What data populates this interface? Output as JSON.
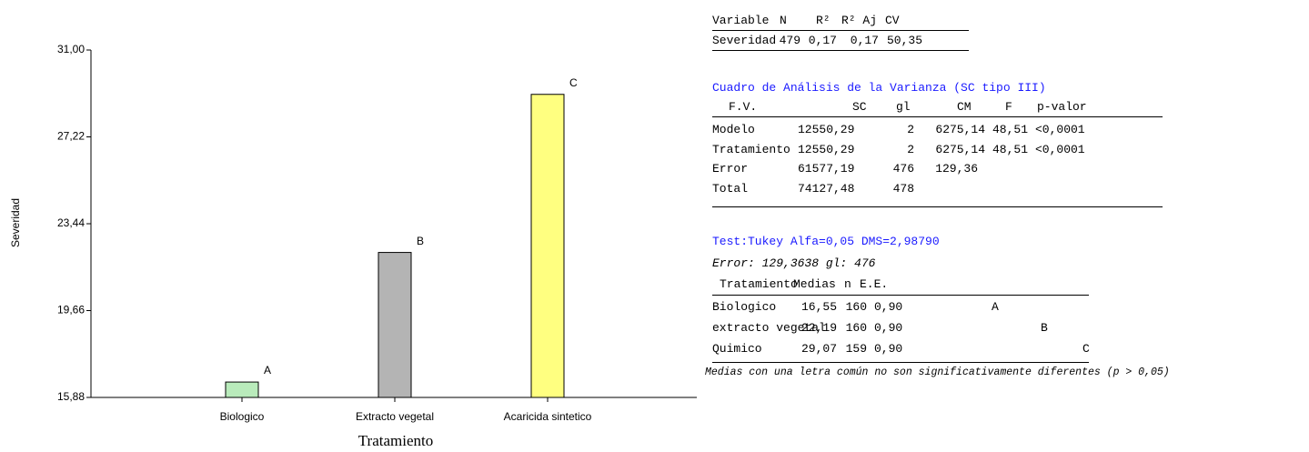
{
  "chart_data": {
    "type": "bar",
    "ylabel": "Severidad",
    "xlabel": "Tratamiento",
    "categories": [
      "Biologico",
      "Extracto vegetal",
      "Acaricida sintetico"
    ],
    "values": [
      16.55,
      22.19,
      29.07
    ],
    "annotations": [
      "A",
      "B",
      "C"
    ],
    "colors": [
      "#b9ebbb",
      "#b4b4b4",
      "#ffff80"
    ],
    "ylim": [
      15.88,
      31.0
    ],
    "yticks": [
      {
        "value": 15.88,
        "label": "15,88"
      },
      {
        "value": 19.66,
        "label": "19,66"
      },
      {
        "value": 23.44,
        "label": "23,44"
      },
      {
        "value": 27.22,
        "label": "27,22"
      },
      {
        "value": 31.0,
        "label": "31,00"
      }
    ]
  },
  "summary": {
    "header": [
      "Variable",
      "N",
      "R²",
      "R² Aj",
      "CV"
    ],
    "rows": [
      [
        "Severidad",
        "479",
        "0,17",
        "0,17",
        "50,35"
      ]
    ]
  },
  "anova": {
    "title": "Cuadro de Análisis de la Varianza (SC tipo III)",
    "header": [
      "F.V.",
      "SC",
      "gl",
      "CM",
      "F",
      "p-valor"
    ],
    "rows": [
      [
        "Modelo",
        "12550,29",
        "2",
        "6275,14",
        "48,51",
        "<0,0001"
      ],
      [
        "Tratamiento",
        "12550,29",
        "2",
        "6275,14",
        "48,51",
        "<0,0001"
      ],
      [
        "Error",
        "61577,19",
        "476",
        "129,36"
      ],
      [
        "Total",
        "74127,48",
        "478"
      ]
    ]
  },
  "tukey": {
    "title": "Test:Tukey Alfa=0,05 DMS=2,98790",
    "error": "Error: 129,3638 gl: 476",
    "header": [
      "Tratamiento",
      "Medias",
      "n",
      "E.E."
    ],
    "rows": [
      [
        "Biologico",
        "16,55",
        "160",
        "0,90",
        "A"
      ],
      [
        "extracto vegetal",
        "22,19",
        "160",
        "0,90",
        "B"
      ],
      [
        "Quimico",
        "29,07",
        "159",
        "0,90",
        "C"
      ]
    ],
    "note": "Medias con una letra común no son significativamente diferentes (p > 0,05)"
  }
}
